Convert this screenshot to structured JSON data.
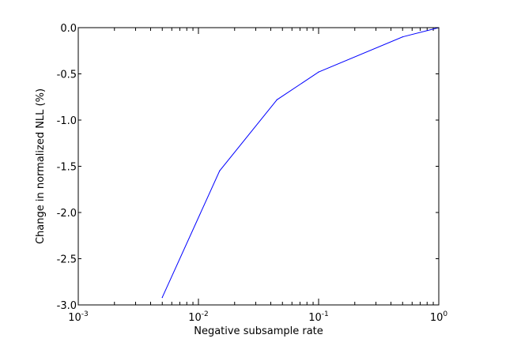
{
  "chart_data": {
    "type": "line",
    "title": "",
    "xlabel": "Negative subsample rate",
    "ylabel": "Change in normalized NLL (%)",
    "xscale": "log",
    "xlim": [
      0.001,
      1
    ],
    "ylim": [
      -3.0,
      0.0
    ],
    "grid": false,
    "legend": "none",
    "x_ticks": [
      {
        "value": 0.001,
        "base": "10",
        "exp": "-3"
      },
      {
        "value": 0.01,
        "base": "10",
        "exp": "-2"
      },
      {
        "value": 0.1,
        "base": "10",
        "exp": "-1"
      },
      {
        "value": 1,
        "base": "10",
        "exp": "0"
      }
    ],
    "y_ticks": [
      {
        "value": 0.0,
        "label": "0.0"
      },
      {
        "value": -0.5,
        "label": "-0.5"
      },
      {
        "value": -1.0,
        "label": "-1.0"
      },
      {
        "value": -1.5,
        "label": "-1.5"
      },
      {
        "value": -2.0,
        "label": "-2.0"
      },
      {
        "value": -2.5,
        "label": "-2.5"
      },
      {
        "value": -3.0,
        "label": "-3.0"
      }
    ],
    "series": [
      {
        "color": "#0000ff",
        "x": [
          0.005,
          0.015,
          0.045,
          0.1,
          0.5,
          1.0
        ],
        "y": [
          -2.92,
          -1.55,
          -0.78,
          -0.48,
          -0.1,
          0.0
        ]
      }
    ]
  }
}
